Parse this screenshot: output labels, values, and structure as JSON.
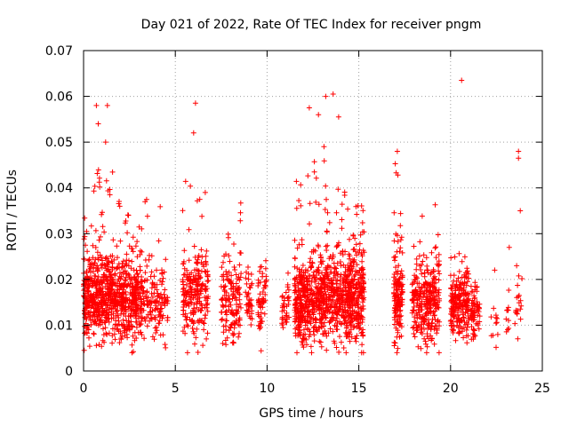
{
  "chart_data": {
    "type": "scatter",
    "title": "Day 021 of 2022, Rate Of TEC Index for receiver pngm",
    "xlabel": "GPS time / hours",
    "ylabel": "ROTI / TECUs",
    "xlim": [
      0,
      25
    ],
    "ylim": [
      0,
      0.07
    ],
    "x_ticks": [
      0,
      5,
      10,
      15,
      20,
      25
    ],
    "x_tick_labels": [
      "0",
      "5",
      "10",
      "15",
      "20",
      "25"
    ],
    "y_ticks": [
      0,
      0.01,
      0.02,
      0.03,
      0.04,
      0.05,
      0.06,
      0.07
    ],
    "y_tick_labels": [
      "0",
      "0.01",
      "0.02",
      "0.03",
      "0.04",
      "0.05",
      "0.06",
      "0.07"
    ],
    "grid": true,
    "marker": "+",
    "series_color": "#ff0000",
    "outliers": [
      {
        "x": 0.7,
        "y": 0.058
      },
      {
        "x": 1.3,
        "y": 0.058
      },
      {
        "x": 0.8,
        "y": 0.054
      },
      {
        "x": 1.2,
        "y": 0.05
      },
      {
        "x": 6.1,
        "y": 0.0585
      },
      {
        "x": 6.0,
        "y": 0.052
      },
      {
        "x": 12.3,
        "y": 0.0575
      },
      {
        "x": 12.8,
        "y": 0.056
      },
      {
        "x": 13.2,
        "y": 0.06
      },
      {
        "x": 13.6,
        "y": 0.0605
      },
      {
        "x": 13.9,
        "y": 0.0555
      },
      {
        "x": 13.1,
        "y": 0.049
      },
      {
        "x": 20.6,
        "y": 0.0635
      },
      {
        "x": 17.1,
        "y": 0.048
      },
      {
        "x": 23.7,
        "y": 0.048
      },
      {
        "x": 23.7,
        "y": 0.0465
      },
      {
        "x": 23.8,
        "y": 0.035
      },
      {
        "x": 23.2,
        "y": 0.027
      }
    ],
    "clusters": [
      {
        "x0": 0.0,
        "x1": 1.6,
        "n": 460,
        "mean": 0.016,
        "spread": 0.006,
        "max": 0.044
      },
      {
        "x0": 1.6,
        "x1": 3.2,
        "n": 380,
        "mean": 0.016,
        "spread": 0.006,
        "max": 0.038
      },
      {
        "x0": 3.2,
        "x1": 4.6,
        "n": 140,
        "mean": 0.015,
        "spread": 0.005,
        "max": 0.04
      },
      {
        "x0": 5.4,
        "x1": 6.8,
        "n": 230,
        "mean": 0.016,
        "spread": 0.006,
        "max": 0.042
      },
      {
        "x0": 7.5,
        "x1": 8.6,
        "n": 150,
        "mean": 0.015,
        "spread": 0.006,
        "max": 0.04
      },
      {
        "x0": 8.8,
        "x1": 9.2,
        "n": 40,
        "mean": 0.015,
        "spread": 0.004,
        "max": 0.025
      },
      {
        "x0": 9.5,
        "x1": 10.0,
        "n": 55,
        "mean": 0.016,
        "spread": 0.005,
        "max": 0.035
      },
      {
        "x0": 10.8,
        "x1": 11.2,
        "n": 35,
        "mean": 0.014,
        "spread": 0.004,
        "max": 0.023
      },
      {
        "x0": 11.5,
        "x1": 13.2,
        "n": 470,
        "mean": 0.016,
        "spread": 0.006,
        "max": 0.046
      },
      {
        "x0": 13.2,
        "x1": 14.5,
        "n": 320,
        "mean": 0.016,
        "spread": 0.006,
        "max": 0.04
      },
      {
        "x0": 14.5,
        "x1": 15.3,
        "n": 230,
        "mean": 0.016,
        "spread": 0.007,
        "max": 0.04
      },
      {
        "x0": 16.9,
        "x1": 17.4,
        "n": 150,
        "mean": 0.017,
        "spread": 0.007,
        "max": 0.047
      },
      {
        "x0": 17.9,
        "x1": 18.6,
        "n": 130,
        "mean": 0.015,
        "spread": 0.006,
        "max": 0.04
      },
      {
        "x0": 18.6,
        "x1": 19.4,
        "n": 170,
        "mean": 0.015,
        "spread": 0.006,
        "max": 0.037
      },
      {
        "x0": 20.0,
        "x1": 21.0,
        "n": 220,
        "mean": 0.014,
        "spread": 0.005,
        "max": 0.026
      },
      {
        "x0": 21.1,
        "x1": 21.6,
        "n": 70,
        "mean": 0.013,
        "spread": 0.004,
        "max": 0.022
      },
      {
        "x0": 22.2,
        "x1": 22.6,
        "n": 12,
        "mean": 0.013,
        "spread": 0.004,
        "max": 0.024
      },
      {
        "x0": 23.0,
        "x1": 23.3,
        "n": 10,
        "mean": 0.012,
        "spread": 0.003,
        "max": 0.02
      },
      {
        "x0": 23.5,
        "x1": 23.9,
        "n": 20,
        "mean": 0.014,
        "spread": 0.005,
        "max": 0.023
      }
    ]
  }
}
